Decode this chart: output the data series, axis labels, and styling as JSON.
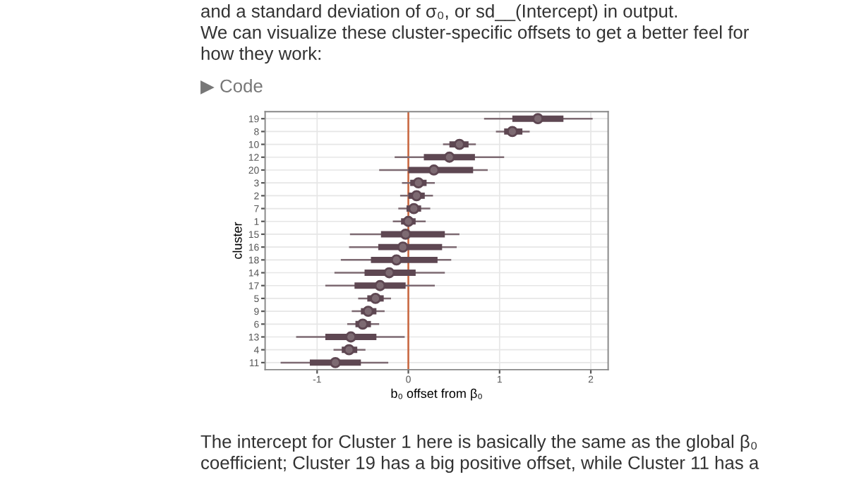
{
  "chart_data": {
    "type": "scatter",
    "orientation": "horizontal",
    "xlabel": "b₀ offset from β₀",
    "ylabel": "cluster",
    "categories": [
      "19",
      "8",
      "10",
      "12",
      "20",
      "3",
      "2",
      "7",
      "1",
      "15",
      "16",
      "18",
      "14",
      "17",
      "5",
      "9",
      "6",
      "13",
      "4",
      "11"
    ],
    "series": [
      {
        "color": "#5e4752",
        "marker": "circle",
        "values": [
          1.42,
          1.14,
          0.56,
          0.45,
          0.28,
          0.11,
          0.09,
          0.06,
          0.0,
          -0.03,
          -0.06,
          -0.13,
          -0.21,
          -0.31,
          -0.36,
          -0.44,
          -0.5,
          -0.63,
          -0.65,
          -0.8
        ],
        "errors": [
          [
            1.14,
            1.7
          ],
          [
            1.05,
            1.25
          ],
          [
            0.45,
            0.66
          ],
          [
            0.17,
            0.73
          ],
          [
            0.0,
            0.71
          ],
          [
            0.02,
            0.2
          ],
          [
            0.0,
            0.18
          ],
          [
            -0.02,
            0.14
          ],
          [
            -0.08,
            0.08
          ],
          [
            -0.3,
            0.4
          ],
          [
            -0.33,
            0.37
          ],
          [
            -0.41,
            0.32
          ],
          [
            -0.48,
            0.08
          ],
          [
            -0.59,
            -0.03
          ],
          [
            -0.45,
            -0.27
          ],
          [
            -0.52,
            -0.35
          ],
          [
            -0.58,
            -0.41
          ],
          [
            -0.91,
            -0.35
          ],
          [
            -0.73,
            -0.56
          ],
          [
            -1.08,
            -0.52
          ]
        ]
      },
      {
        "color": "#7d6a72",
        "marker": "circle",
        "values": [
          1.42,
          1.14,
          0.56,
          0.45,
          0.28,
          0.11,
          0.09,
          0.06,
          0.0,
          -0.03,
          -0.06,
          -0.13,
          -0.21,
          -0.31,
          -0.36,
          -0.44,
          -0.5,
          -0.63,
          -0.65,
          -0.8
        ],
        "errors": [
          [
            0.83,
            2.02
          ],
          [
            0.96,
            1.33
          ],
          [
            0.38,
            0.74
          ],
          [
            -0.15,
            1.05
          ],
          [
            -0.32,
            0.87
          ],
          [
            -0.07,
            0.29
          ],
          [
            -0.09,
            0.27
          ],
          [
            -0.11,
            0.24
          ],
          [
            -0.17,
            0.19
          ],
          [
            -0.64,
            0.56
          ],
          [
            -0.65,
            0.53
          ],
          [
            -0.74,
            0.47
          ],
          [
            -0.81,
            0.4
          ],
          [
            -0.91,
            0.29
          ],
          [
            -0.55,
            -0.19
          ],
          [
            -0.62,
            -0.26
          ],
          [
            -0.67,
            -0.32
          ],
          [
            -1.23,
            -0.04
          ],
          [
            -0.82,
            -0.47
          ],
          [
            -1.4,
            -0.22
          ]
        ]
      }
    ],
    "xlim": [
      -1.57,
      2.19
    ],
    "xticks": [
      -1,
      0,
      1,
      2
    ],
    "grid": true,
    "ref_lines": [
      {
        "axis": "x",
        "value": 0,
        "color": "#c8643c"
      }
    ],
    "annotations": [
      "and a standard deviation of σ₀, or sd__(Intercept) in output.",
      "We can visualize these cluster-specific offsets to get a better feel for",
      "how they work:",
      "▶ Code",
      "The intercept for Cluster 1 here is basically the same as the global β₀",
      "coefficient; Cluster 19 has a big positive offset, while Cluster 11 has a"
    ]
  }
}
